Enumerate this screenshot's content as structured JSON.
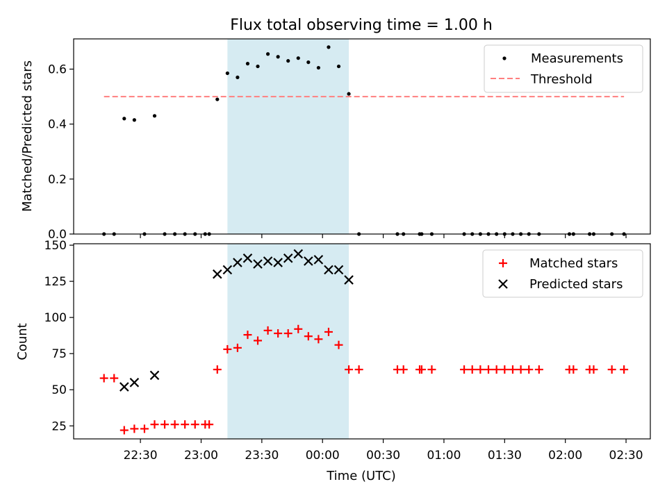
{
  "title": "Flux total observing time = 1.00 h",
  "colors": {
    "measurement": "#000000",
    "threshold": "#ff7f7f",
    "matched": "#ff0000",
    "predicted": "#000000",
    "highlight": "#add8e6"
  },
  "chart_data": [
    {
      "type": "scatter",
      "ylabel": "Matched/Predicted stars",
      "ylim": [
        0,
        0.71
      ],
      "yticks": [
        0.0,
        0.2,
        0.4,
        0.6
      ],
      "ytick_labels": [
        "0.0",
        "0.2",
        "0.4",
        "0.6"
      ],
      "legend_position": "top-right",
      "highlight_span": [
        "23:13",
        "00:13"
      ],
      "series": [
        {
          "name": "Measurements",
          "marker": "dot",
          "points": [
            [
              "22:12",
              0.0
            ],
            [
              "22:17",
              0.0
            ],
            [
              "22:22",
              0.42
            ],
            [
              "22:27",
              0.415
            ],
            [
              "22:32",
              0.0
            ],
            [
              "22:37",
              0.43
            ],
            [
              "22:42",
              0.0
            ],
            [
              "22:47",
              0.0
            ],
            [
              "22:52",
              0.0
            ],
            [
              "22:57",
              0.0
            ],
            [
              "23:02",
              0.0
            ],
            [
              "23:04",
              0.0
            ],
            [
              "23:08",
              0.49
            ],
            [
              "23:13",
              0.585
            ],
            [
              "23:18",
              0.57
            ],
            [
              "23:23",
              0.62
            ],
            [
              "23:28",
              0.61
            ],
            [
              "23:33",
              0.655
            ],
            [
              "23:38",
              0.645
            ],
            [
              "23:43",
              0.63
            ],
            [
              "23:48",
              0.64
            ],
            [
              "23:53",
              0.625
            ],
            [
              "23:58",
              0.605
            ],
            [
              "00:03",
              0.68
            ],
            [
              "00:08",
              0.61
            ],
            [
              "00:13",
              0.51
            ],
            [
              "00:18",
              0.0
            ],
            [
              "00:37",
              0.0
            ],
            [
              "00:40",
              0.0
            ],
            [
              "00:48",
              0.0
            ],
            [
              "00:49",
              0.0
            ],
            [
              "00:54",
              0.0
            ],
            [
              "01:10",
              0.0
            ],
            [
              "01:14",
              0.0
            ],
            [
              "01:18",
              0.0
            ],
            [
              "01:22",
              0.0
            ],
            [
              "01:26",
              0.0
            ],
            [
              "01:30",
              0.0
            ],
            [
              "01:34",
              0.0
            ],
            [
              "01:38",
              0.0
            ],
            [
              "01:42",
              0.0
            ],
            [
              "01:47",
              0.0
            ],
            [
              "02:02",
              0.0
            ],
            [
              "02:04",
              0.0
            ],
            [
              "02:12",
              0.0
            ],
            [
              "02:14",
              0.0
            ],
            [
              "02:23",
              0.0
            ],
            [
              "02:29",
              0.0
            ]
          ]
        },
        {
          "name": "Threshold",
          "style": "dashed",
          "points": [
            [
              "22:12",
              0.5
            ],
            [
              "02:29",
              0.5
            ]
          ]
        }
      ]
    },
    {
      "type": "scatter",
      "xlabel": "Time (UTC)",
      "ylabel": "Count",
      "ylim": [
        16,
        151
      ],
      "yticks": [
        25,
        50,
        75,
        100,
        125,
        150
      ],
      "ytick_labels": [
        "25",
        "50",
        "75",
        "100",
        "125",
        "150"
      ],
      "xticks": [
        "22:30",
        "23:00",
        "23:30",
        "00:00",
        "00:30",
        "01:00",
        "01:30",
        "02:00",
        "02:30"
      ],
      "legend_position": "top-right",
      "highlight_span": [
        "23:13",
        "00:13"
      ],
      "series": [
        {
          "name": "Matched stars",
          "marker": "plus",
          "points": [
            [
              "22:12",
              58
            ],
            [
              "22:17",
              58
            ],
            [
              "22:22",
              22
            ],
            [
              "22:27",
              23
            ],
            [
              "22:32",
              23
            ],
            [
              "22:37",
              26
            ],
            [
              "22:42",
              26
            ],
            [
              "22:47",
              26
            ],
            [
              "22:52",
              26
            ],
            [
              "22:57",
              26
            ],
            [
              "23:02",
              26
            ],
            [
              "23:04",
              26
            ],
            [
              "23:08",
              64
            ],
            [
              "23:13",
              78
            ],
            [
              "23:18",
              79
            ],
            [
              "23:23",
              88
            ],
            [
              "23:28",
              84
            ],
            [
              "23:33",
              91
            ],
            [
              "23:38",
              89
            ],
            [
              "23:43",
              89
            ],
            [
              "23:48",
              92
            ],
            [
              "23:53",
              87
            ],
            [
              "23:58",
              85
            ],
            [
              "00:03",
              90
            ],
            [
              "00:08",
              81
            ],
            [
              "00:13",
              64
            ],
            [
              "00:18",
              64
            ],
            [
              "00:37",
              64
            ],
            [
              "00:40",
              64
            ],
            [
              "00:48",
              64
            ],
            [
              "00:49",
              64
            ],
            [
              "00:54",
              64
            ],
            [
              "01:10",
              64
            ],
            [
              "01:14",
              64
            ],
            [
              "01:18",
              64
            ],
            [
              "01:22",
              64
            ],
            [
              "01:26",
              64
            ],
            [
              "01:30",
              64
            ],
            [
              "01:34",
              64
            ],
            [
              "01:38",
              64
            ],
            [
              "01:42",
              64
            ],
            [
              "01:47",
              64
            ],
            [
              "02:02",
              64
            ],
            [
              "02:04",
              64
            ],
            [
              "02:12",
              64
            ],
            [
              "02:14",
              64
            ],
            [
              "02:23",
              64
            ],
            [
              "02:29",
              64
            ]
          ]
        },
        {
          "name": "Predicted stars",
          "marker": "x",
          "points": [
            [
              "22:22",
              52
            ],
            [
              "22:27",
              55
            ],
            [
              "22:37",
              60
            ],
            [
              "23:08",
              130
            ],
            [
              "23:13",
              133
            ],
            [
              "23:18",
              138
            ],
            [
              "23:23",
              141
            ],
            [
              "23:28",
              137
            ],
            [
              "23:33",
              139
            ],
            [
              "23:38",
              138
            ],
            [
              "23:43",
              141
            ],
            [
              "23:48",
              144
            ],
            [
              "23:53",
              139
            ],
            [
              "23:58",
              140
            ],
            [
              "00:03",
              133
            ],
            [
              "00:08",
              133
            ],
            [
              "00:13",
              126
            ]
          ]
        }
      ]
    }
  ]
}
